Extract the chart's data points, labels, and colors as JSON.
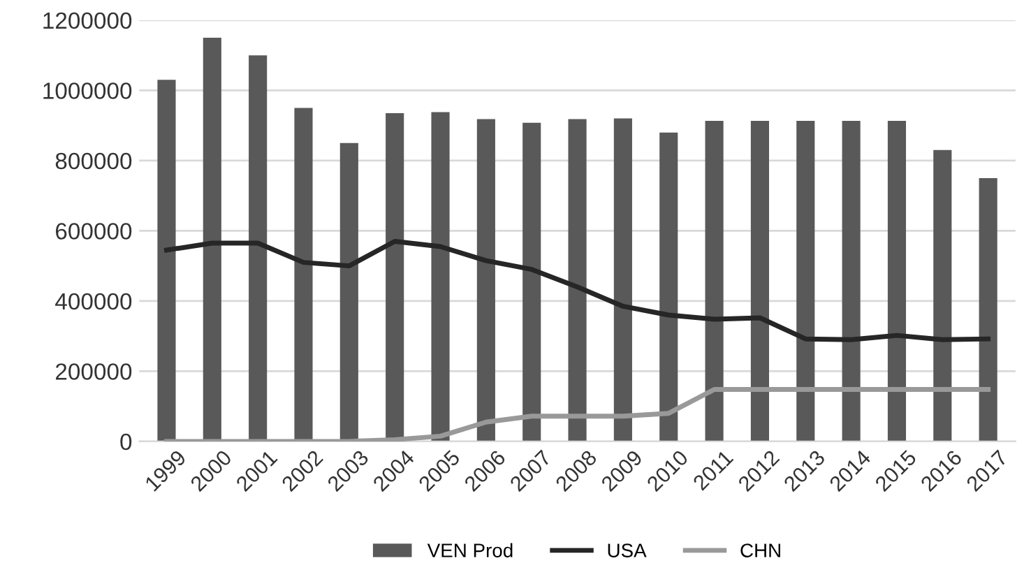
{
  "chart_data": {
    "type": "bar",
    "categories": [
      "1999",
      "2000",
      "2001",
      "2002",
      "2003",
      "2004",
      "2005",
      "2006",
      "2007",
      "2008",
      "2009",
      "2010",
      "2011",
      "2012",
      "2013",
      "2014",
      "2015",
      "2016",
      "2017"
    ],
    "series": [
      {
        "name": "VEN Prod",
        "color": "#595959",
        "values": [
          1030000,
          1150000,
          1100000,
          950000,
          850000,
          935000,
          938000,
          918000,
          908000,
          918000,
          920000,
          880000,
          913000,
          913000,
          913000,
          913000,
          913000,
          830000,
          750000
        ]
      },
      {
        "name": "USA",
        "type": "line",
        "color": "#262626",
        "values": [
          545000,
          565000,
          565000,
          510000,
          500000,
          570000,
          555000,
          515000,
          490000,
          440000,
          385000,
          360000,
          348000,
          352000,
          292000,
          290000,
          302000,
          290000,
          292000
        ]
      },
      {
        "name": "CHN",
        "type": "line",
        "color": "#999999",
        "values": [
          0,
          0,
          0,
          0,
          0,
          5000,
          15000,
          55000,
          72000,
          72000,
          72000,
          80000,
          148000,
          148000,
          148000,
          148000,
          148000,
          148000,
          148000
        ]
      }
    ],
    "ylim": [
      0,
      1200000
    ],
    "yticks": [
      0,
      200000,
      400000,
      600000,
      800000,
      1000000,
      1200000
    ],
    "grid": "y",
    "legend": "bottom"
  }
}
